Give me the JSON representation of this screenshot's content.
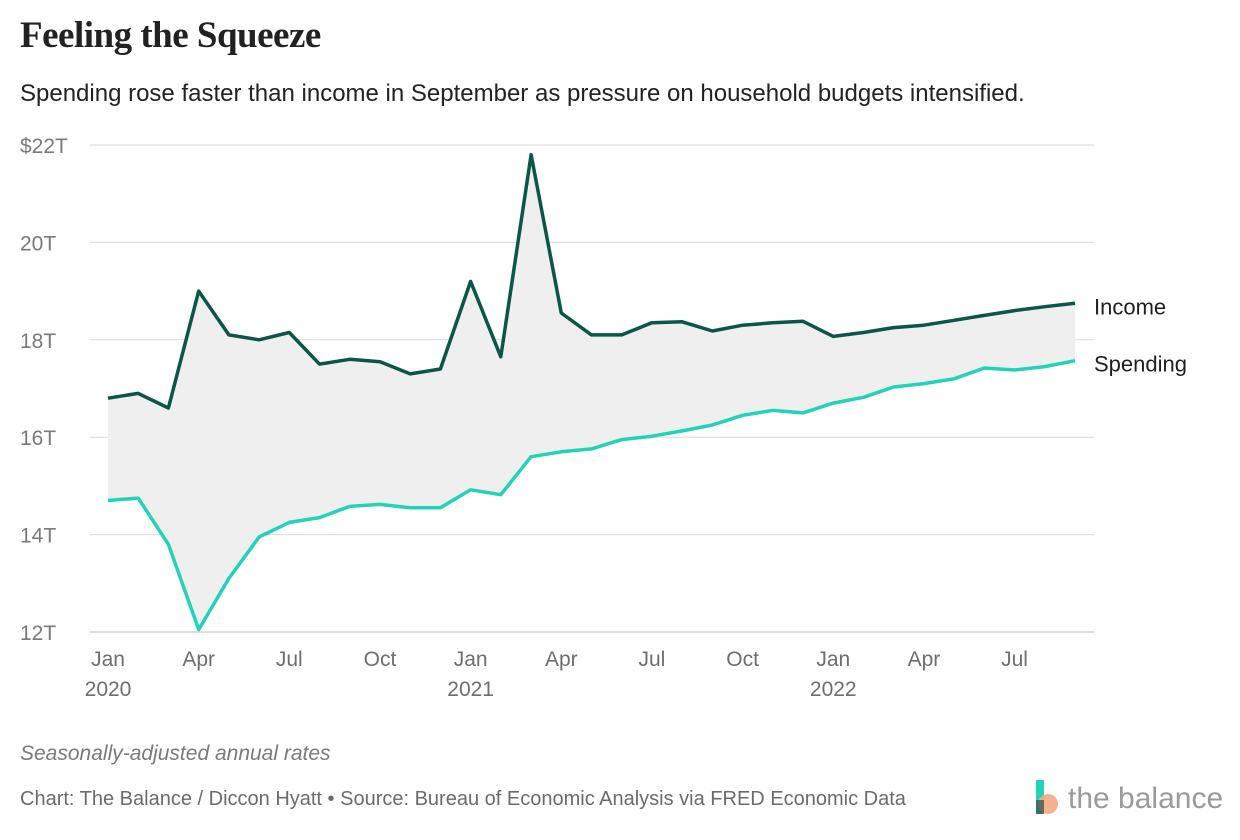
{
  "header": {
    "title": "Feeling the Squeeze",
    "subtitle": "Spending rose faster than income in September as pressure on household budgets intensified."
  },
  "footer": {
    "note": "Seasonally-adjusted annual rates",
    "credit": "Chart: The Balance / Diccon Hyatt • Source: Bureau of Economic Analysis via FRED Economic Data",
    "logo_text": "the balance"
  },
  "colors": {
    "income": "#0b5647",
    "spending": "#22d3b7",
    "gap_fill": "#efefef",
    "grid": "#d9d9d9"
  },
  "chart_data": {
    "type": "line",
    "x": [
      "2020-01",
      "2020-02",
      "2020-03",
      "2020-04",
      "2020-05",
      "2020-06",
      "2020-07",
      "2020-08",
      "2020-09",
      "2020-10",
      "2020-11",
      "2020-12",
      "2021-01",
      "2021-02",
      "2021-03",
      "2021-04",
      "2021-05",
      "2021-06",
      "2021-07",
      "2021-08",
      "2021-09",
      "2021-10",
      "2021-11",
      "2021-12",
      "2022-01",
      "2022-02",
      "2022-03",
      "2022-04",
      "2022-05",
      "2022-06",
      "2022-07",
      "2022-08",
      "2022-09"
    ],
    "series": [
      {
        "name": "Income",
        "values": [
          16.8,
          16.9,
          16.6,
          19.0,
          18.1,
          18.0,
          18.15,
          17.5,
          17.6,
          17.55,
          17.3,
          17.4,
          19.2,
          17.65,
          21.8,
          18.55,
          18.1,
          18.1,
          18.35,
          18.37,
          18.18,
          18.3,
          18.35,
          18.38,
          18.07,
          18.15,
          18.25,
          18.3,
          18.4,
          18.5,
          18.6,
          18.68,
          18.75
        ]
      },
      {
        "name": "Spending",
        "values": [
          14.7,
          14.75,
          13.8,
          12.05,
          13.1,
          13.95,
          14.25,
          14.35,
          14.58,
          14.62,
          14.55,
          14.55,
          14.92,
          14.82,
          15.6,
          15.7,
          15.76,
          15.95,
          16.02,
          16.13,
          16.25,
          16.45,
          16.55,
          16.5,
          16.7,
          16.82,
          17.03,
          17.1,
          17.2,
          17.42,
          17.38,
          17.45,
          17.57
        ]
      }
    ],
    "y_ticks": [
      {
        "value": 22,
        "label": "$22T"
      },
      {
        "value": 20,
        "label": "20T"
      },
      {
        "value": 18,
        "label": "18T"
      },
      {
        "value": 16,
        "label": "16T"
      },
      {
        "value": 14,
        "label": "14T"
      },
      {
        "value": 12,
        "label": "12T"
      }
    ],
    "x_ticks": [
      {
        "index": 0,
        "label": "Jan",
        "year": "2020"
      },
      {
        "index": 3,
        "label": "Apr",
        "year": ""
      },
      {
        "index": 6,
        "label": "Jul",
        "year": ""
      },
      {
        "index": 9,
        "label": "Oct",
        "year": ""
      },
      {
        "index": 12,
        "label": "Jan",
        "year": "2021"
      },
      {
        "index": 15,
        "label": "Apr",
        "year": ""
      },
      {
        "index": 18,
        "label": "Jul",
        "year": ""
      },
      {
        "index": 21,
        "label": "Oct",
        "year": ""
      },
      {
        "index": 24,
        "label": "Jan",
        "year": "2022"
      },
      {
        "index": 27,
        "label": "Apr",
        "year": ""
      },
      {
        "index": 30,
        "label": "Jul",
        "year": ""
      }
    ],
    "ylim": [
      12,
      22
    ],
    "grid": true,
    "legend": "direct labels at right end of lines",
    "title": "Feeling the Squeeze",
    "xlabel": "",
    "ylabel": ""
  }
}
